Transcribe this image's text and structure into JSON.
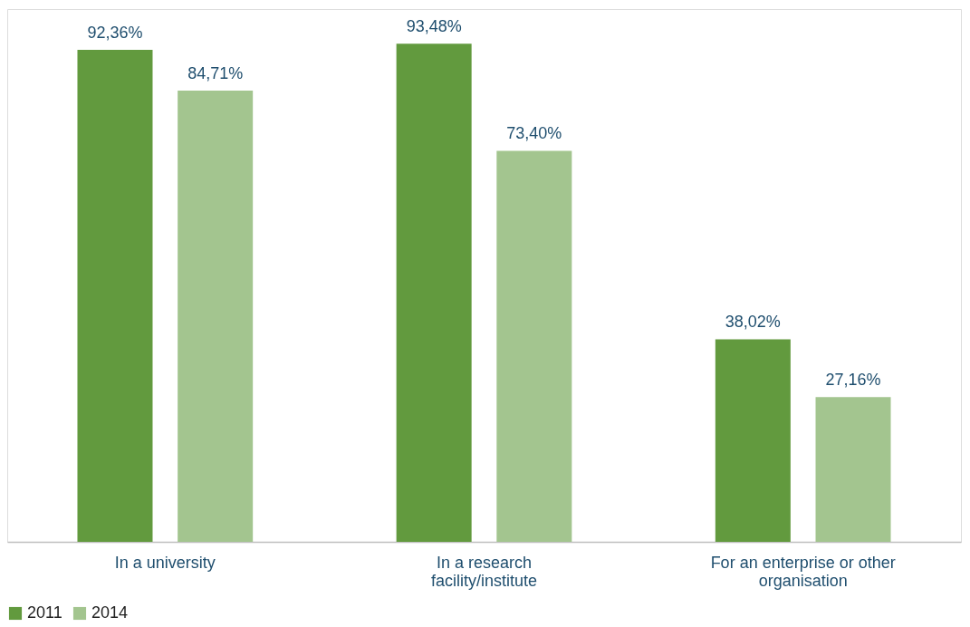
{
  "chart_data": {
    "type": "bar",
    "categories": [
      "In a university",
      "In a research facility/institute",
      "For an enterprise or other organisation"
    ],
    "series": [
      {
        "name": "2011",
        "color": "#629a3e",
        "values": [
          92.36,
          93.48,
          38.02
        ],
        "value_labels": [
          "92,36%",
          "93,48%",
          "38,02%"
        ]
      },
      {
        "name": "2014",
        "color": "#a3c58f",
        "values": [
          84.71,
          73.4,
          27.16
        ],
        "value_labels": [
          "84,71%",
          "73,40%",
          "27,16%"
        ]
      }
    ],
    "legend": "bottom",
    "grid": false
  }
}
